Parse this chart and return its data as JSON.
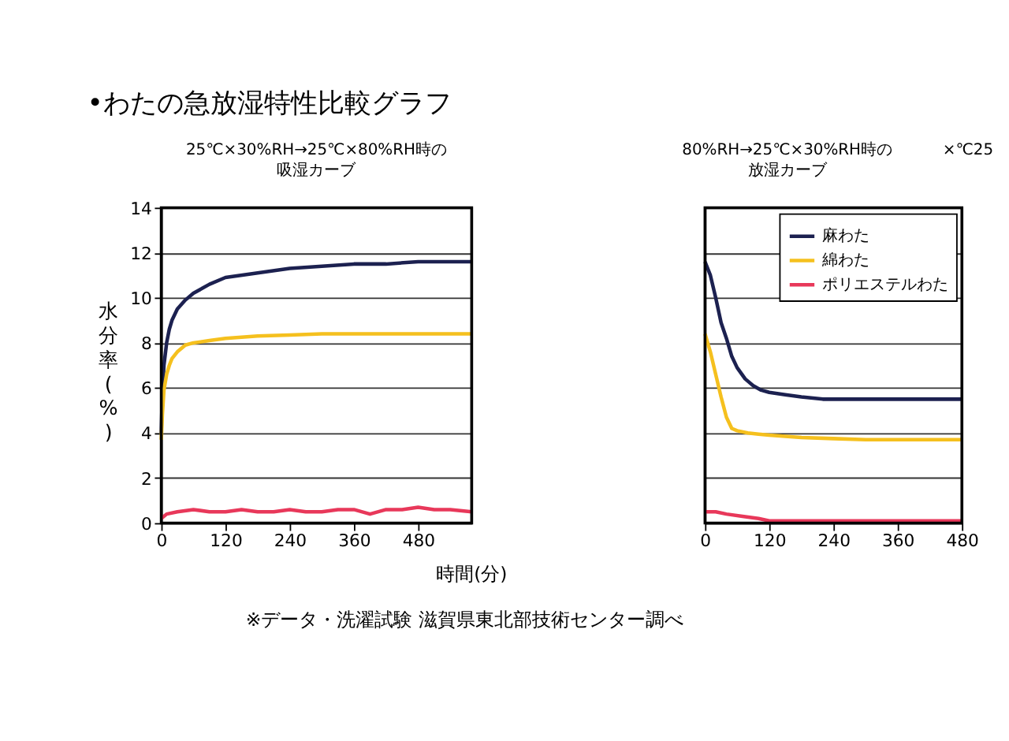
{
  "chart_data": [
    {
      "type": "line",
      "title": "•わたの急放湿特性比較グラフ",
      "xlabel": "時間(分)",
      "ylabel": "水分率(%)",
      "annotations": [
        "25℃×30%RH→25℃×80%RH時の",
        "吸湿カーブ",
        "※データ・洗濯試験 滋賀県東北部技術センター調べ"
      ],
      "xlim": [
        0,
        580
      ],
      "ylim": [
        0,
        14
      ],
      "xticks": [
        0,
        120,
        240,
        360,
        480
      ],
      "yticks": [
        0,
        2,
        4,
        6,
        8,
        10,
        12,
        14
      ],
      "grid": "y",
      "marker": "none",
      "line_style": "solid",
      "series": [
        {
          "color": "#1c2150",
          "x": [
            0,
            2,
            5,
            10,
            15,
            20,
            30,
            45,
            60,
            90,
            120,
            180,
            240,
            300,
            360,
            420,
            480,
            540,
            580
          ],
          "values": [
            4.0,
            5.8,
            7.0,
            8.0,
            8.6,
            9.0,
            9.5,
            9.9,
            10.2,
            10.6,
            10.9,
            11.1,
            11.3,
            11.4,
            11.5,
            11.5,
            11.6,
            11.6,
            11.6
          ]
        },
        {
          "color": "#f5c01e",
          "x": [
            0,
            2,
            5,
            10,
            15,
            20,
            30,
            45,
            60,
            90,
            120,
            180,
            240,
            300,
            360,
            420,
            480,
            540,
            580
          ],
          "values": [
            3.7,
            4.8,
            5.9,
            6.6,
            7.0,
            7.3,
            7.6,
            7.9,
            8.0,
            8.1,
            8.2,
            8.3,
            8.35,
            8.4,
            8.4,
            8.4,
            8.4,
            8.4,
            8.4
          ]
        },
        {
          "color": "#e8385a",
          "x": [
            0,
            10,
            30,
            60,
            90,
            120,
            150,
            180,
            210,
            240,
            270,
            300,
            330,
            360,
            390,
            420,
            450,
            480,
            510,
            540,
            580
          ],
          "values": [
            0.2,
            0.4,
            0.5,
            0.6,
            0.5,
            0.5,
            0.6,
            0.5,
            0.5,
            0.6,
            0.5,
            0.5,
            0.6,
            0.6,
            0.4,
            0.6,
            0.6,
            0.7,
            0.6,
            0.6,
            0.5
          ]
        }
      ]
    },
    {
      "type": "line",
      "annotations": [
        "80%RH→25℃×30%RH時の",
        "放湿カーブ",
        "×℃25"
      ],
      "xlim": [
        0,
        480
      ],
      "ylim": [
        0,
        14
      ],
      "xticks": [
        0,
        120,
        240,
        360,
        480
      ],
      "yticks": [
        0,
        2,
        4,
        6,
        8,
        10,
        12,
        14
      ],
      "tick_labels": "x",
      "grid": "y",
      "legend": "top right",
      "marker": "none",
      "line_style": "solid",
      "series": [
        {
          "name": "麻わた",
          "color": "#1c2150",
          "x": [
            0,
            10,
            20,
            30,
            40,
            50,
            60,
            75,
            90,
            105,
            120,
            150,
            180,
            220,
            240,
            300,
            360,
            420,
            480
          ],
          "values": [
            11.6,
            11.0,
            10.0,
            8.9,
            8.2,
            7.4,
            6.9,
            6.4,
            6.1,
            5.9,
            5.8,
            5.7,
            5.6,
            5.5,
            5.5,
            5.5,
            5.5,
            5.5,
            5.5
          ]
        },
        {
          "name": "綿わた",
          "color": "#f5c01e",
          "x": [
            0,
            10,
            20,
            30,
            40,
            50,
            60,
            80,
            100,
            120,
            180,
            240,
            300,
            360,
            420,
            480
          ],
          "values": [
            8.4,
            7.6,
            6.6,
            5.6,
            4.7,
            4.2,
            4.1,
            4.0,
            3.95,
            3.9,
            3.8,
            3.75,
            3.7,
            3.7,
            3.7,
            3.7
          ]
        },
        {
          "name": "ポリエステルわた",
          "color": "#e8385a",
          "x": [
            0,
            20,
            40,
            70,
            100,
            120,
            180,
            240,
            300,
            360,
            420,
            480
          ],
          "values": [
            0.5,
            0.5,
            0.4,
            0.3,
            0.2,
            0.1,
            0.1,
            0.1,
            0.1,
            0.1,
            0.1,
            0.1
          ]
        }
      ]
    }
  ]
}
